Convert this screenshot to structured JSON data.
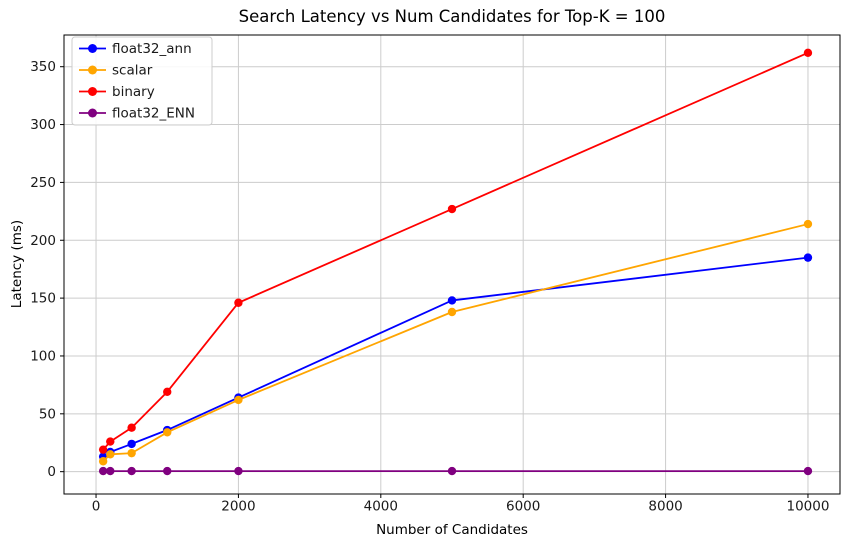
{
  "chart_data": {
    "type": "line",
    "title": "Search Latency vs Num Candidates for Top-K = 100",
    "xlabel": "Number of Candidates",
    "ylabel": "Latency (ms)",
    "x": [
      100,
      200,
      500,
      1000,
      2000,
      5000,
      10000
    ],
    "series": [
      {
        "name": "float32_ann",
        "color": "#0000ff",
        "values": [
          13,
          17,
          24,
          36,
          64,
          148,
          185
        ]
      },
      {
        "name": "scalar",
        "color": "#ffa500",
        "values": [
          9,
          15,
          16,
          34,
          62,
          138,
          214
        ]
      },
      {
        "name": "binary",
        "color": "#ff0000",
        "values": [
          19,
          26,
          38,
          69,
          146,
          227,
          362
        ]
      },
      {
        "name": "float32_ENN",
        "color": "#800080",
        "values": [
          0.5,
          0.5,
          0.5,
          0.5,
          0.5,
          0.5,
          0.5
        ]
      }
    ],
    "xticks": [
      0,
      2000,
      4000,
      6000,
      8000,
      10000
    ],
    "yticks": [
      0,
      50,
      100,
      150,
      200,
      250,
      300,
      350
    ],
    "xlim": [
      -450,
      10450
    ],
    "ylim": [
      -19.3,
      377.4
    ],
    "grid": true,
    "grid_color": "#cccccc",
    "spine_color": "#000000",
    "background": "#ffffff",
    "legend_position": "upper-left",
    "marker": "circle"
  }
}
